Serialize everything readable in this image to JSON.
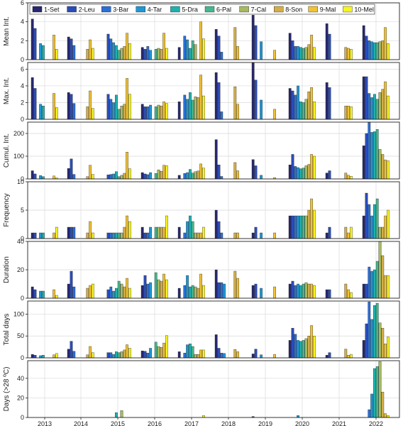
{
  "chart_data": {
    "type": "bar",
    "x_label": "",
    "years": [
      "2013",
      "2014",
      "2015",
      "2016",
      "2017",
      "2018",
      "2019",
      "2020",
      "2021",
      "2022"
    ],
    "legend": {
      "placement": "top-left",
      "entries": [
        "1-Set",
        "2-Leu",
        "3-Bar",
        "4-Tar",
        "5-Dra",
        "6-Pal",
        "7-Cal",
        "8-Son",
        "9-Mal",
        "10-Mel"
      ]
    },
    "colors": [
      "#27286f",
      "#2a4cb8",
      "#2a6fd6",
      "#1f97d3",
      "#1fb0b0",
      "#45b78f",
      "#a6b960",
      "#d4ae4a",
      "#f2c234",
      "#f8f520"
    ],
    "grid": true,
    "panels": [
      {
        "ylabel": "Mean Int.",
        "ylim": [
          0,
          6
        ],
        "yticks": [
          "0",
          "2",
          "4",
          "6"
        ],
        "values": [
          [
            4.3,
            3.3,
            0,
            1.7,
            1.5,
            0,
            0,
            0,
            2.6,
            1.1
          ],
          [
            2.4,
            2.2,
            1.5,
            0,
            0,
            0,
            0,
            1.1,
            2.1,
            1.2
          ],
          [
            0,
            2.7,
            2.2,
            1.8,
            1.5,
            1.0,
            1.2,
            1.4,
            2.8,
            1.7
          ],
          [
            1.3,
            1.1,
            1.4,
            1.0,
            0,
            1.1,
            1.2,
            1.1,
            2.8,
            1.2
          ],
          [
            1.3,
            0,
            2.5,
            2.1,
            1.2,
            2.0,
            1.6,
            0,
            4.0,
            2.2
          ],
          [
            3.2,
            2.5,
            0.8,
            0,
            0,
            0,
            0,
            3.4,
            1.4,
            0
          ],
          [
            4.7,
            3.6,
            0,
            1.9,
            0,
            0,
            0,
            0,
            1.0,
            0
          ],
          [
            2.8,
            2.0,
            1.4,
            1.4,
            1.3,
            1.2,
            1.3,
            1.6,
            2.6,
            1.3
          ],
          [
            3.8,
            2.7,
            0,
            0,
            0,
            0,
            0,
            1.3,
            1.2,
            1.1
          ],
          [
            3.6,
            2.5,
            2.0,
            1.9,
            1.8,
            1.8,
            1.9,
            2.0,
            3.4,
            1.7
          ]
        ]
      },
      {
        "ylabel": "Max. Int.",
        "ylim": [
          0,
          6.8
        ],
        "yticks": [
          "0",
          "2",
          "4",
          "6"
        ],
        "values": [
          [
            5.0,
            3.7,
            0,
            1.8,
            1.6,
            0,
            0,
            0,
            3.1,
            1.4
          ],
          [
            3.2,
            3.0,
            1.9,
            0,
            0,
            0,
            0,
            1.5,
            3.4,
            1.3
          ],
          [
            0,
            3.0,
            2.4,
            2.0,
            2.9,
            1.2,
            1.6,
            1.8,
            4.9,
            3.0
          ],
          [
            1.8,
            1.5,
            1.5,
            1.7,
            0,
            1.5,
            1.7,
            1.6,
            2.1,
            1.9
          ],
          [
            2.1,
            0,
            2.9,
            2.4,
            3.2,
            2.3,
            2.7,
            2.6,
            5.3,
            2.8
          ],
          [
            5.6,
            4.4,
            0.9,
            0,
            0,
            0,
            0,
            3.9,
            1.8,
            0
          ],
          [
            6.8,
            4.7,
            0,
            2.3,
            0,
            0,
            0,
            0,
            1.2,
            0
          ],
          [
            3.7,
            3.4,
            2.9,
            4.0,
            2.1,
            2.0,
            2.4,
            3.3,
            3.8,
            2.1
          ],
          [
            4.4,
            3.8,
            0,
            0,
            0,
            0,
            0,
            1.6,
            1.6,
            1.5
          ],
          [
            5.1,
            5.1,
            3.1,
            2.6,
            3.0,
            2.4,
            3.2,
            3.6,
            4.5,
            2.8
          ]
        ]
      },
      {
        "ylabel": "Cumul. Int.",
        "ylim": [
          0,
          250
        ],
        "yticks": [
          "0",
          "100",
          "200"
        ],
        "values": [
          [
            36,
            22,
            0,
            15,
            10,
            0,
            0,
            0,
            13,
            4
          ],
          [
            46,
            88,
            20,
            0,
            0,
            0,
            0,
            10,
            60,
            20
          ],
          [
            0,
            18,
            20,
            22,
            32,
            10,
            16,
            25,
            118,
            45
          ],
          [
            28,
            22,
            19,
            28,
            0,
            24,
            40,
            34,
            60,
            58
          ],
          [
            16,
            0,
            24,
            28,
            42,
            26,
            32,
            35,
            66,
            48
          ],
          [
            173,
            62,
            11,
            0,
            0,
            0,
            0,
            72,
            36,
            0
          ],
          [
            85,
            58,
            0,
            16,
            0,
            0,
            0,
            0,
            6,
            0
          ],
          [
            62,
            108,
            55,
            50,
            45,
            48,
            58,
            64,
            108,
            100
          ],
          [
            26,
            36,
            0,
            0,
            0,
            0,
            0,
            26,
            16,
            12
          ],
          [
            146,
            200,
            248,
            205,
            208,
            218,
            130,
            108,
            84,
            80
          ]
        ]
      },
      {
        "ylabel": "Frequency",
        "ylim": [
          0,
          10
        ],
        "yticks": [
          "0",
          "5",
          "10"
        ],
        "values": [
          [
            1,
            1,
            0,
            1,
            1,
            0,
            0,
            0,
            1,
            2
          ],
          [
            2,
            2,
            2,
            0,
            0,
            0,
            0,
            1,
            3,
            1
          ],
          [
            0,
            1,
            1,
            1,
            1,
            1,
            1,
            2,
            4,
            3
          ],
          [
            2,
            1,
            1,
            2,
            0,
            2,
            2,
            2,
            2,
            4
          ],
          [
            2,
            0,
            1,
            3,
            4,
            3,
            1,
            1,
            1,
            2
          ],
          [
            5,
            3,
            1,
            0,
            0,
            0,
            0,
            1,
            1,
            0
          ],
          [
            1,
            2,
            0,
            1,
            0,
            0,
            0,
            0,
            1,
            0
          ],
          [
            4,
            4,
            4,
            4,
            4,
            4,
            4,
            5,
            7,
            5
          ],
          [
            1,
            2,
            0,
            0,
            0,
            0,
            0,
            2,
            1,
            2
          ],
          [
            4,
            8,
            6,
            4,
            6,
            7,
            2,
            2,
            4,
            5
          ]
        ]
      },
      {
        "ylabel": "Duration",
        "ylim": [
          0,
          40
        ],
        "yticks": [
          "0",
          "20",
          "40"
        ],
        "values": [
          [
            8,
            6,
            0,
            5,
            5,
            0,
            0,
            0,
            6,
            2
          ],
          [
            10,
            19,
            8,
            0,
            0,
            0,
            0,
            7,
            9,
            10
          ],
          [
            0,
            6,
            8,
            5,
            7,
            12,
            10,
            8,
            14,
            7
          ],
          [
            9,
            16,
            10,
            11,
            0,
            18,
            13,
            12,
            17,
            13
          ],
          [
            7,
            0,
            9,
            16,
            8,
            9,
            8,
            7,
            17,
            9
          ],
          [
            20,
            11,
            11,
            10,
            0,
            0,
            0,
            19,
            14,
            0
          ],
          [
            9,
            10,
            0,
            7,
            0,
            0,
            0,
            0,
            8,
            0
          ],
          [
            10,
            12,
            9,
            10,
            9,
            10,
            11,
            10,
            10,
            9
          ],
          [
            6,
            6,
            0,
            0,
            0,
            0,
            0,
            10,
            6,
            4
          ],
          [
            10,
            10,
            22,
            19,
            20,
            26,
            40,
            30,
            16,
            16
          ]
        ]
      },
      {
        "ylabel": "Total days",
        "ylim": [
          0,
          130
        ],
        "yticks": [
          "0",
          "50",
          "100"
        ],
        "values": [
          [
            8,
            6,
            0,
            5,
            6,
            0,
            0,
            0,
            7,
            10
          ],
          [
            20,
            38,
            15,
            0,
            0,
            0,
            0,
            7,
            26,
            12
          ],
          [
            0,
            12,
            12,
            8,
            14,
            12,
            14,
            18,
            30,
            22
          ],
          [
            16,
            15,
            11,
            22,
            0,
            36,
            26,
            24,
            34,
            51
          ],
          [
            14,
            0,
            11,
            30,
            32,
            26,
            8,
            8,
            18,
            18
          ],
          [
            53,
            22,
            11,
            10,
            0,
            0,
            0,
            19,
            14,
            0
          ],
          [
            9,
            20,
            0,
            7,
            0,
            0,
            0,
            0,
            8,
            0
          ],
          [
            40,
            68,
            54,
            40,
            38,
            40,
            44,
            50,
            74,
            50
          ],
          [
            6,
            12,
            0,
            0,
            0,
            0,
            0,
            20,
            6,
            8
          ],
          [
            40,
            78,
            128,
            88,
            120,
            125,
            80,
            68,
            32,
            48
          ]
        ]
      },
      {
        "ylabel": "Days (>28 ºC)",
        "ylim": [
          0,
          58
        ],
        "yticks": [
          "0",
          "20",
          "40"
        ],
        "values": [
          [
            0,
            0,
            0,
            0,
            0,
            0,
            0,
            0,
            0,
            0
          ],
          [
            0,
            0,
            0,
            0,
            0,
            0,
            0,
            0,
            0,
            0
          ],
          [
            0,
            0,
            0,
            0,
            5,
            0,
            7,
            0,
            0,
            0
          ],
          [
            0,
            0,
            0,
            0,
            0,
            0,
            0,
            0,
            0,
            0
          ],
          [
            0,
            0,
            0,
            0,
            0,
            0,
            0,
            0,
            0,
            2
          ],
          [
            0,
            0,
            0,
            0,
            0,
            0,
            0,
            0,
            0,
            0
          ],
          [
            1,
            0,
            0,
            0,
            0,
            0,
            0,
            0,
            0,
            0
          ],
          [
            0,
            0,
            0,
            2,
            0,
            0,
            0,
            0,
            0,
            0
          ],
          [
            0,
            0,
            0,
            0,
            0,
            0,
            0,
            0,
            0,
            0
          ],
          [
            0,
            0,
            8,
            24,
            50,
            52,
            57,
            26,
            4,
            2
          ]
        ]
      }
    ]
  }
}
